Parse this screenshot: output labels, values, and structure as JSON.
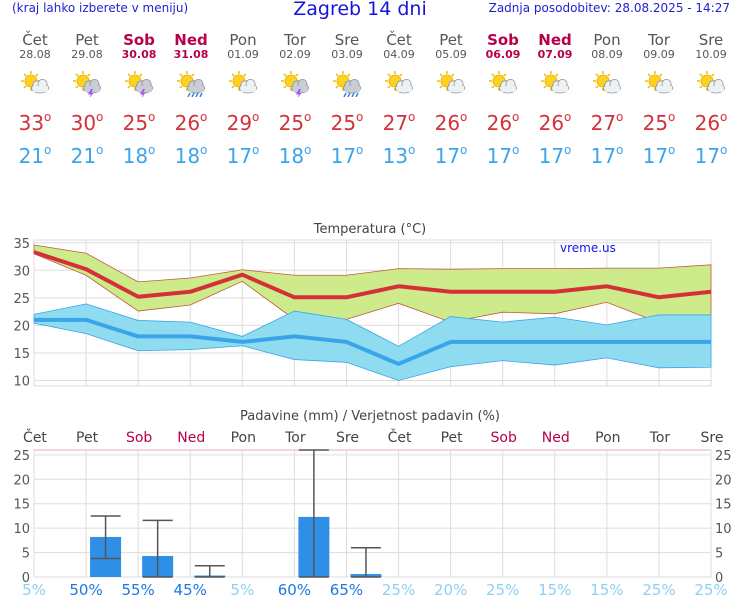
{
  "header": {
    "subtitle": "(kraj lahko izberete v meniju)",
    "title": "Zagreb 14 dni",
    "updated": "Zadnja posodobitev: 28.08.2025 - 14:27"
  },
  "days": [
    {
      "name": "Čet",
      "date": "28.08",
      "weekend": false,
      "icon": "sun-cloud-icon",
      "tmax": "33",
      "tmin": "21"
    },
    {
      "name": "Pet",
      "date": "29.08",
      "weekend": false,
      "icon": "thunderstorm-icon",
      "tmax": "30",
      "tmin": "21"
    },
    {
      "name": "Sob",
      "date": "30.08",
      "weekend": true,
      "icon": "thunderstorm-icon",
      "tmax": "25",
      "tmin": "18"
    },
    {
      "name": "Ned",
      "date": "31.08",
      "weekend": true,
      "icon": "sun-rain-icon",
      "tmax": "26",
      "tmin": "18"
    },
    {
      "name": "Pon",
      "date": "01.09",
      "weekend": false,
      "icon": "sun-cloud-icon",
      "tmax": "29",
      "tmin": "17"
    },
    {
      "name": "Tor",
      "date": "02.09",
      "weekend": false,
      "icon": "thunderstorm-icon",
      "tmax": "25",
      "tmin": "18"
    },
    {
      "name": "Sre",
      "date": "03.09",
      "weekend": false,
      "icon": "sun-rain-icon",
      "tmax": "25",
      "tmin": "17"
    },
    {
      "name": "Čet",
      "date": "04.09",
      "weekend": false,
      "icon": "sun-cloud-icon",
      "tmax": "27",
      "tmin": "13"
    },
    {
      "name": "Pet",
      "date": "05.09",
      "weekend": false,
      "icon": "sun-cloud-icon",
      "tmax": "26",
      "tmin": "17"
    },
    {
      "name": "Sob",
      "date": "06.09",
      "weekend": true,
      "icon": "sun-cloud-icon",
      "tmax": "26",
      "tmin": "17"
    },
    {
      "name": "Ned",
      "date": "07.09",
      "weekend": true,
      "icon": "sun-cloud-icon",
      "tmax": "26",
      "tmin": "17"
    },
    {
      "name": "Pon",
      "date": "08.09",
      "weekend": false,
      "icon": "sun-cloud-icon",
      "tmax": "27",
      "tmin": "17"
    },
    {
      "name": "Tor",
      "date": "09.09",
      "weekend": false,
      "icon": "sun-cloud-icon",
      "tmax": "25",
      "tmin": "17"
    },
    {
      "name": "Sre",
      "date": "10.09",
      "weekend": false,
      "icon": "sun-cloud-icon",
      "tmax": "26",
      "tmin": "17"
    }
  ],
  "colors": {
    "max": "#d4303a",
    "min": "#3aa4ea",
    "max_band": "#cdeb8b",
    "min_band": "#8fdcf0",
    "weekend": "#b8004a",
    "bar": "#2f8fe6",
    "grid": "#dddddd",
    "header": "#1414e0"
  },
  "chart_data": [
    {
      "type": "line",
      "title": "Temperatura (°C)",
      "watermark": "vreme.us",
      "ylim": [
        9,
        35.5
      ],
      "yticks": [
        10,
        15,
        20,
        25,
        30,
        35
      ],
      "grid": true,
      "series": [
        {
          "values": [
            33.3,
            30.2,
            25.2,
            26.1,
            29.2,
            25.1,
            25.1,
            27.1,
            26.1,
            26.1,
            26.1,
            27.1,
            25.1,
            26.1
          ]
        },
        {
          "values": [
            21.0,
            21.0,
            18.0,
            18.0,
            17.0,
            18.0,
            17.0,
            13.0,
            17.0,
            17.0,
            17.0,
            17.0,
            17.0,
            17.0
          ]
        }
      ],
      "max_band_upper": [
        34.6,
        33.1,
        27.9,
        28.6,
        30.1,
        29.1,
        29.1,
        30.3,
        30.2,
        30.3,
        30.3,
        30.4,
        30.4,
        31.0
      ],
      "max_band_lower": [
        33.0,
        29.1,
        22.6,
        23.7,
        28.0,
        21.1,
        21.1,
        24.0,
        20.6,
        22.4,
        22.1,
        24.2,
        20.5,
        21.8
      ],
      "min_band_upper": [
        22.0,
        23.9,
        20.9,
        20.6,
        18.0,
        22.6,
        21.1,
        16.2,
        21.6,
        20.6,
        21.5,
        20.1,
        21.9,
        21.9
      ],
      "min_band_lower": [
        20.4,
        18.5,
        15.4,
        15.6,
        16.3,
        13.8,
        13.3,
        10.0,
        12.5,
        13.6,
        12.8,
        14.1,
        12.3,
        12.4
      ]
    },
    {
      "type": "bar",
      "title": "Padavine (mm) / Verjetnost padavin (%)",
      "ylim": [
        0,
        26
      ],
      "yticks": [
        0,
        5,
        10,
        15,
        20,
        25
      ],
      "grid": true,
      "categories": [
        "Čet",
        "Pet",
        "Sob",
        "Ned",
        "Pon",
        "Tor",
        "Sre",
        "Čet",
        "Pet",
        "Sob",
        "Ned",
        "Pon",
        "Tor",
        "Sre"
      ],
      "weekend": [
        false,
        false,
        true,
        true,
        false,
        false,
        false,
        false,
        false,
        true,
        true,
        false,
        false,
        false
      ],
      "values": [
        0,
        8.2,
        4.3,
        0.3,
        0,
        12.3,
        0.6,
        0,
        0,
        0,
        0,
        0,
        0,
        0
      ],
      "err_low": [
        null,
        3.8,
        0,
        0,
        null,
        0,
        0,
        null,
        null,
        null,
        null,
        null,
        null,
        null
      ],
      "err_high": [
        null,
        12.5,
        11.6,
        2.3,
        null,
        26,
        6.0,
        null,
        null,
        null,
        null,
        null,
        null,
        null
      ],
      "probability": [
        "5%",
        "50%",
        "55%",
        "45%",
        "5%",
        "60%",
        "65%",
        "25%",
        "20%",
        "25%",
        "15%",
        "15%",
        "25%",
        "25%"
      ]
    }
  ]
}
